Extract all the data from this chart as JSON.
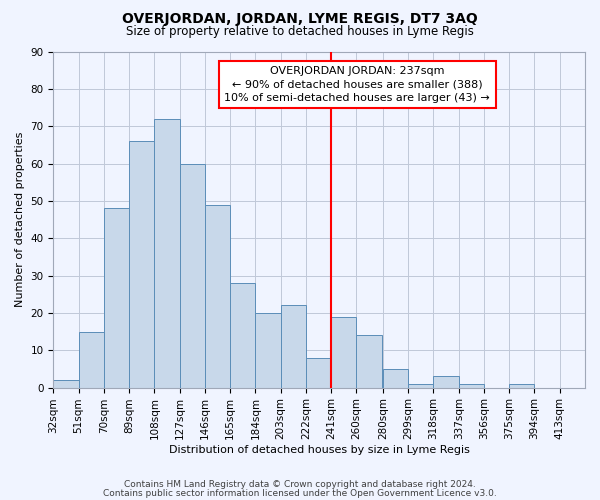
{
  "title": "OVERJORDAN, JORDAN, LYME REGIS, DT7 3AQ",
  "subtitle": "Size of property relative to detached houses in Lyme Regis",
  "xlabel": "Distribution of detached houses by size in Lyme Regis",
  "ylabel": "Number of detached properties",
  "bin_labels": [
    "32sqm",
    "51sqm",
    "70sqm",
    "89sqm",
    "108sqm",
    "127sqm",
    "146sqm",
    "165sqm",
    "184sqm",
    "203sqm",
    "222sqm",
    "241sqm",
    "260sqm",
    "280sqm",
    "299sqm",
    "318sqm",
    "337sqm",
    "356sqm",
    "375sqm",
    "394sqm",
    "413sqm"
  ],
  "bin_edges": [
    32,
    51,
    70,
    89,
    108,
    127,
    146,
    165,
    184,
    203,
    222,
    241,
    260,
    280,
    299,
    318,
    337,
    356,
    375,
    394,
    413
  ],
  "bin_width": 19,
  "counts": [
    2,
    15,
    48,
    66,
    72,
    60,
    49,
    28,
    20,
    22,
    8,
    19,
    14,
    5,
    1,
    3,
    1,
    0,
    1,
    0
  ],
  "bar_color": "#c8d8ea",
  "bar_edge_color": "#5b8db8",
  "vline_x": 241,
  "vline_color": "red",
  "annotation_title": "OVERJORDAN JORDAN: 237sqm",
  "annotation_line1": "← 90% of detached houses are smaller (388)",
  "annotation_line2": "10% of semi-detached houses are larger (43) →",
  "annotation_box_color": "red",
  "ylim": [
    0,
    90
  ],
  "yticks": [
    0,
    10,
    20,
    30,
    40,
    50,
    60,
    70,
    80,
    90
  ],
  "footer1": "Contains HM Land Registry data © Crown copyright and database right 2024.",
  "footer2": "Contains public sector information licensed under the Open Government Licence v3.0.",
  "bg_color": "#f0f4ff",
  "grid_color": "#c0c8d8",
  "title_fontsize": 10,
  "subtitle_fontsize": 8.5,
  "axis_label_fontsize": 8,
  "tick_fontsize": 7.5,
  "footer_fontsize": 6.5
}
